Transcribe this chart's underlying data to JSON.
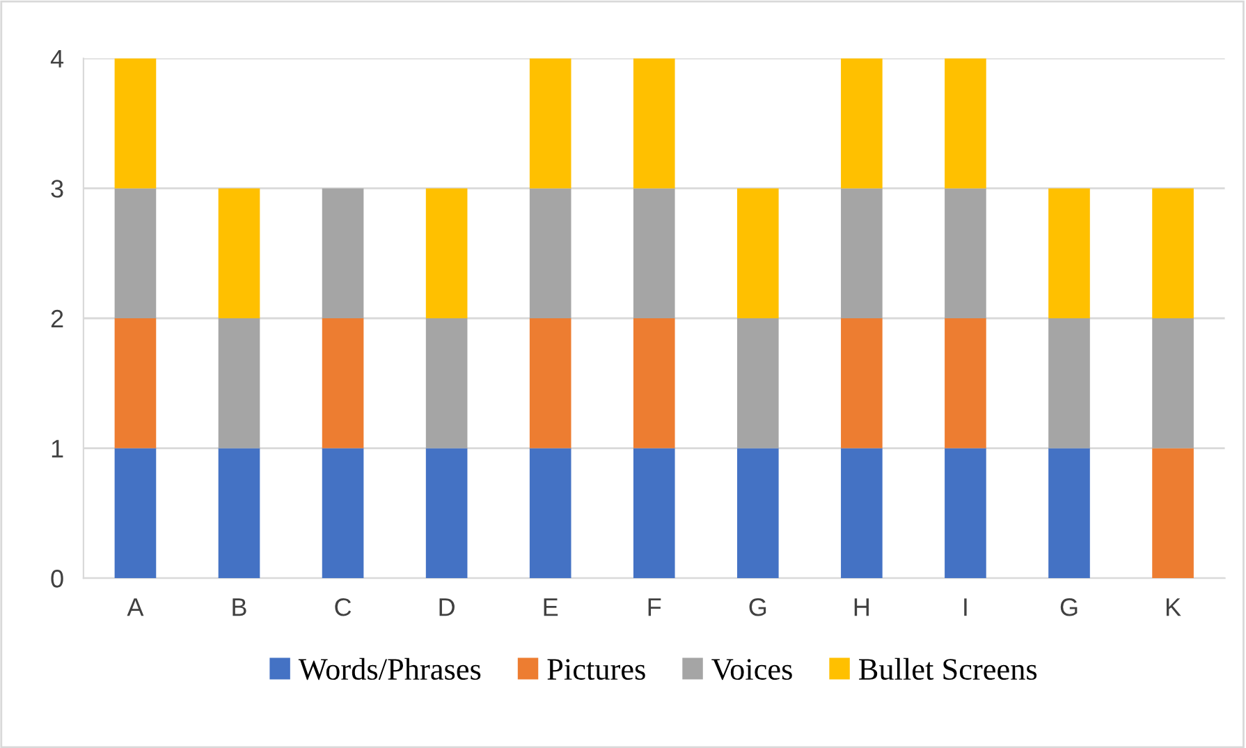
{
  "chart_data": {
    "type": "bar",
    "stacked": true,
    "categories": [
      "A",
      "B",
      "C",
      "D",
      "E",
      "F",
      "G",
      "H",
      "I",
      "G",
      "K"
    ],
    "series": [
      {
        "name": "Words/Phrases",
        "color": "#4472c4",
        "values": [
          1,
          1,
          1,
          1,
          1,
          1,
          1,
          1,
          1,
          1,
          0
        ]
      },
      {
        "name": "Pictures",
        "color": "#ed7d31",
        "values": [
          1,
          0,
          1,
          0,
          1,
          1,
          0,
          1,
          1,
          0,
          1
        ]
      },
      {
        "name": "Voices",
        "color": "#a5a5a5",
        "values": [
          1,
          1,
          1,
          1,
          1,
          1,
          1,
          1,
          1,
          1,
          1
        ]
      },
      {
        "name": "Bullet Screens",
        "color": "#ffc000",
        "values": [
          1,
          1,
          0,
          1,
          1,
          1,
          1,
          1,
          1,
          1,
          1
        ]
      }
    ],
    "ylim": [
      0,
      4
    ],
    "yticks": [
      0,
      1,
      2,
      3,
      4
    ],
    "grid": "y",
    "legend": "bottom"
  }
}
